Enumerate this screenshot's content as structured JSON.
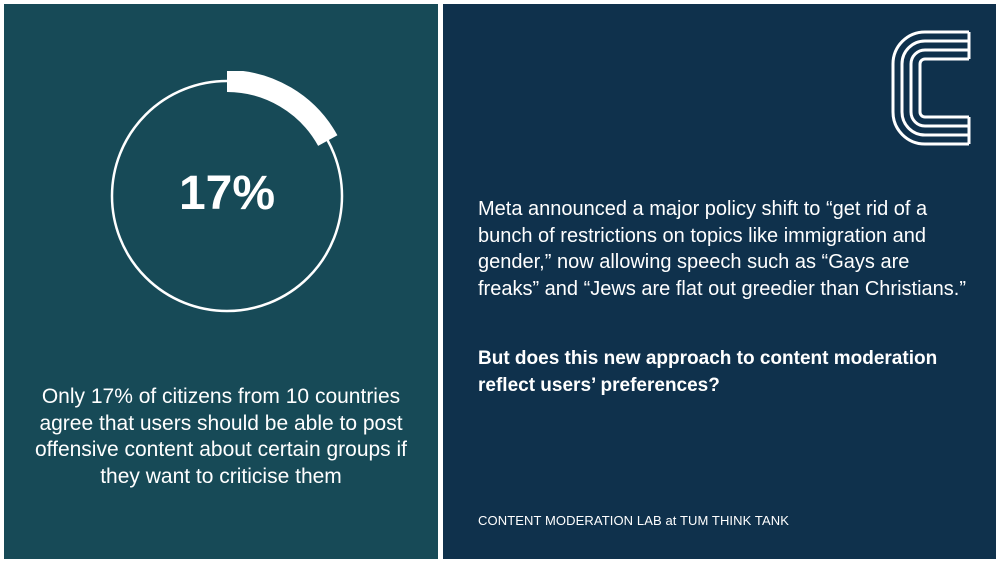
{
  "stat": {
    "value": "17%",
    "fraction": 0.17,
    "caption": "Only 17% of citizens from 10 countries agree that users should be able to post offensive content about certain groups if they want to criticise them"
  },
  "main": {
    "announcement": "Meta announced a major policy shift to “get rid of a bunch of restrictions on topics like immigration and gender,” now allowing speech such as “Gays are freaks” and “Jews are flat out greedier than Christians.”",
    "question": "But does this new approach to content moderation reflect users’ preferences?",
    "footer": "CONTENT MODERATION LAB at TUM THINK TANK"
  },
  "colors": {
    "left_panel": "#174a57",
    "right_panel": "#0f314c",
    "text": "#ffffff"
  },
  "logo": {
    "icon": "c-logo-icon"
  }
}
